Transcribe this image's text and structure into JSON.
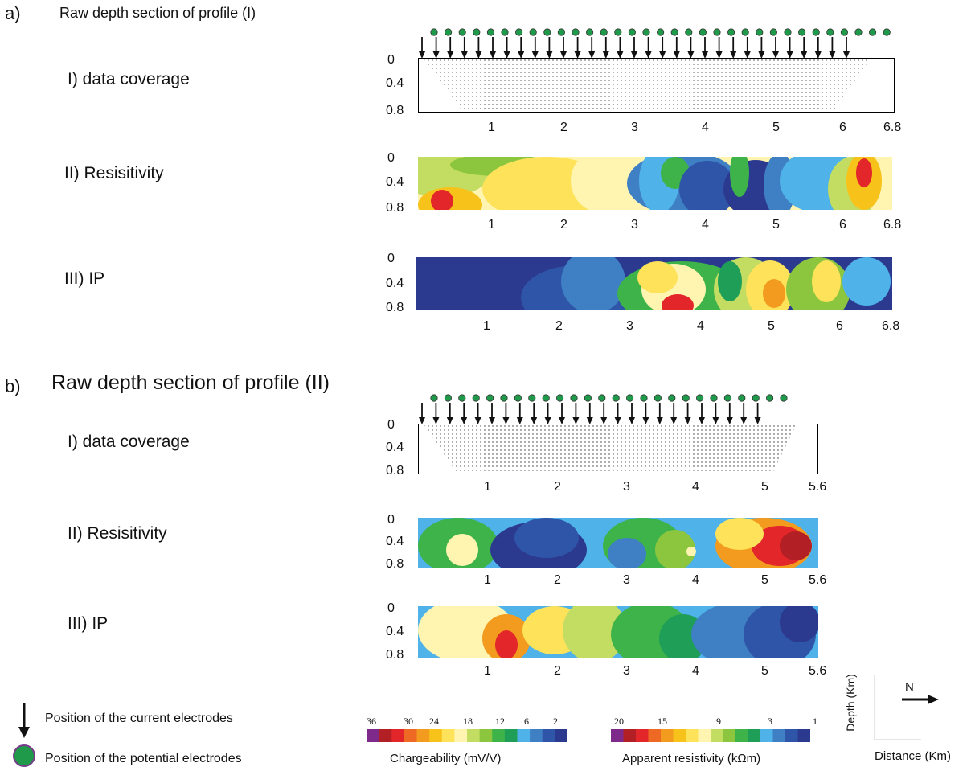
{
  "colors": {
    "cold_to_hot": [
      "#2b3a8f",
      "#2f55a8",
      "#3f7fc4",
      "#4fb2e8",
      "#1e9e57",
      "#3db34a",
      "#8cc63f",
      "#c3dc62",
      "#fff5b0",
      "#fde25a",
      "#f7c21a",
      "#f29b1f",
      "#ee6a24",
      "#e2262a",
      "#b21f24",
      "#7e2a8b"
    ]
  },
  "section_a": {
    "letter": "a)",
    "title": "Raw depth section of profile (I)",
    "row1": "I)  data coverage",
    "row2": "II)  Resisitivity",
    "row3": "III) IP",
    "depth_ticks": [
      "0",
      "0.4",
      "0.8"
    ],
    "distance_ticks": [
      "1",
      "2",
      "3",
      "4",
      "5",
      "6",
      "6.8"
    ]
  },
  "section_b": {
    "letter": "b)",
    "title": "Raw depth section of profile (II)",
    "row1": "I)  data coverage",
    "row2": "II)  Resisitivity",
    "row3": "III) IP",
    "depth_ticks": [
      "0",
      "0.4",
      "0.8"
    ],
    "distance_ticks": [
      "1",
      "2",
      "3",
      "4",
      "5",
      "5.6"
    ]
  },
  "legend": {
    "current": "Position of the current electrodes",
    "potential": "Position of the potential electrodes",
    "chargeability_title": "Chargeability (mV/V)",
    "chargeability_ticks": [
      "36",
      "30",
      "24",
      "18",
      "12",
      "6",
      "2"
    ],
    "resistivity_title": "Apparent resistivity (kΩm)",
    "resistivity_ticks": [
      "20",
      "15",
      "9",
      "3",
      "1"
    ],
    "axis_depth": "Depth (Km)",
    "axis_distance": "Distance (Km)",
    "north": "N"
  }
}
